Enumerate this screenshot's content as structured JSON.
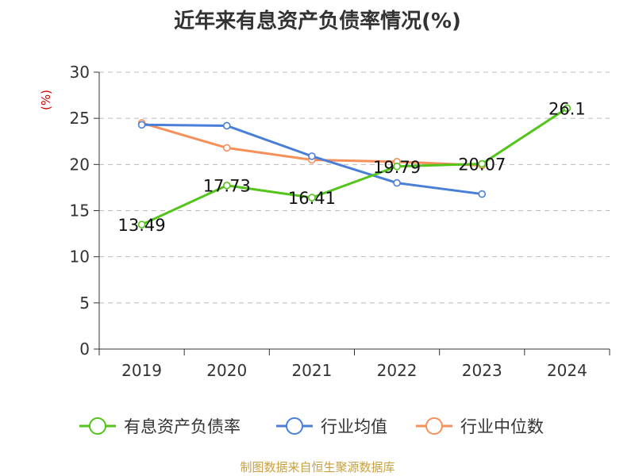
{
  "chart_data": {
    "type": "line",
    "title": "近年来有息资产负债率情况(%)",
    "ylabel": "(%)",
    "xlabel": "",
    "ylim": [
      0,
      30
    ],
    "yticks": [
      "0",
      "5",
      "10",
      "15",
      "20",
      "25",
      "30"
    ],
    "categories": [
      "2019",
      "2020",
      "2021",
      "2022",
      "2023",
      "2024"
    ],
    "grid": true,
    "legend_position": "bottom",
    "series": [
      {
        "name": "有息资产负债率",
        "color": "#52c41a",
        "values": [
          13.49,
          17.73,
          16.41,
          19.79,
          20.07,
          26.1
        ],
        "labels": [
          "13.49",
          "17.73",
          "16.41",
          "19.79",
          "20.07",
          "26.1"
        ]
      },
      {
        "name": "行业均值",
        "color": "#4a7fd8",
        "values": [
          24.3,
          24.2,
          20.9,
          18.0,
          16.8,
          null
        ]
      },
      {
        "name": "行业中位数",
        "color": "#f5905a",
        "values": [
          24.5,
          21.8,
          20.5,
          20.3,
          19.9,
          null
        ]
      }
    ]
  },
  "source_text": "制图数据来自恒生聚源数据库",
  "colors": {
    "title": "#333333",
    "axis": "#333333",
    "grid": "#bbbbbb",
    "ylabel": "#cc0000",
    "source": "#c8a040"
  }
}
